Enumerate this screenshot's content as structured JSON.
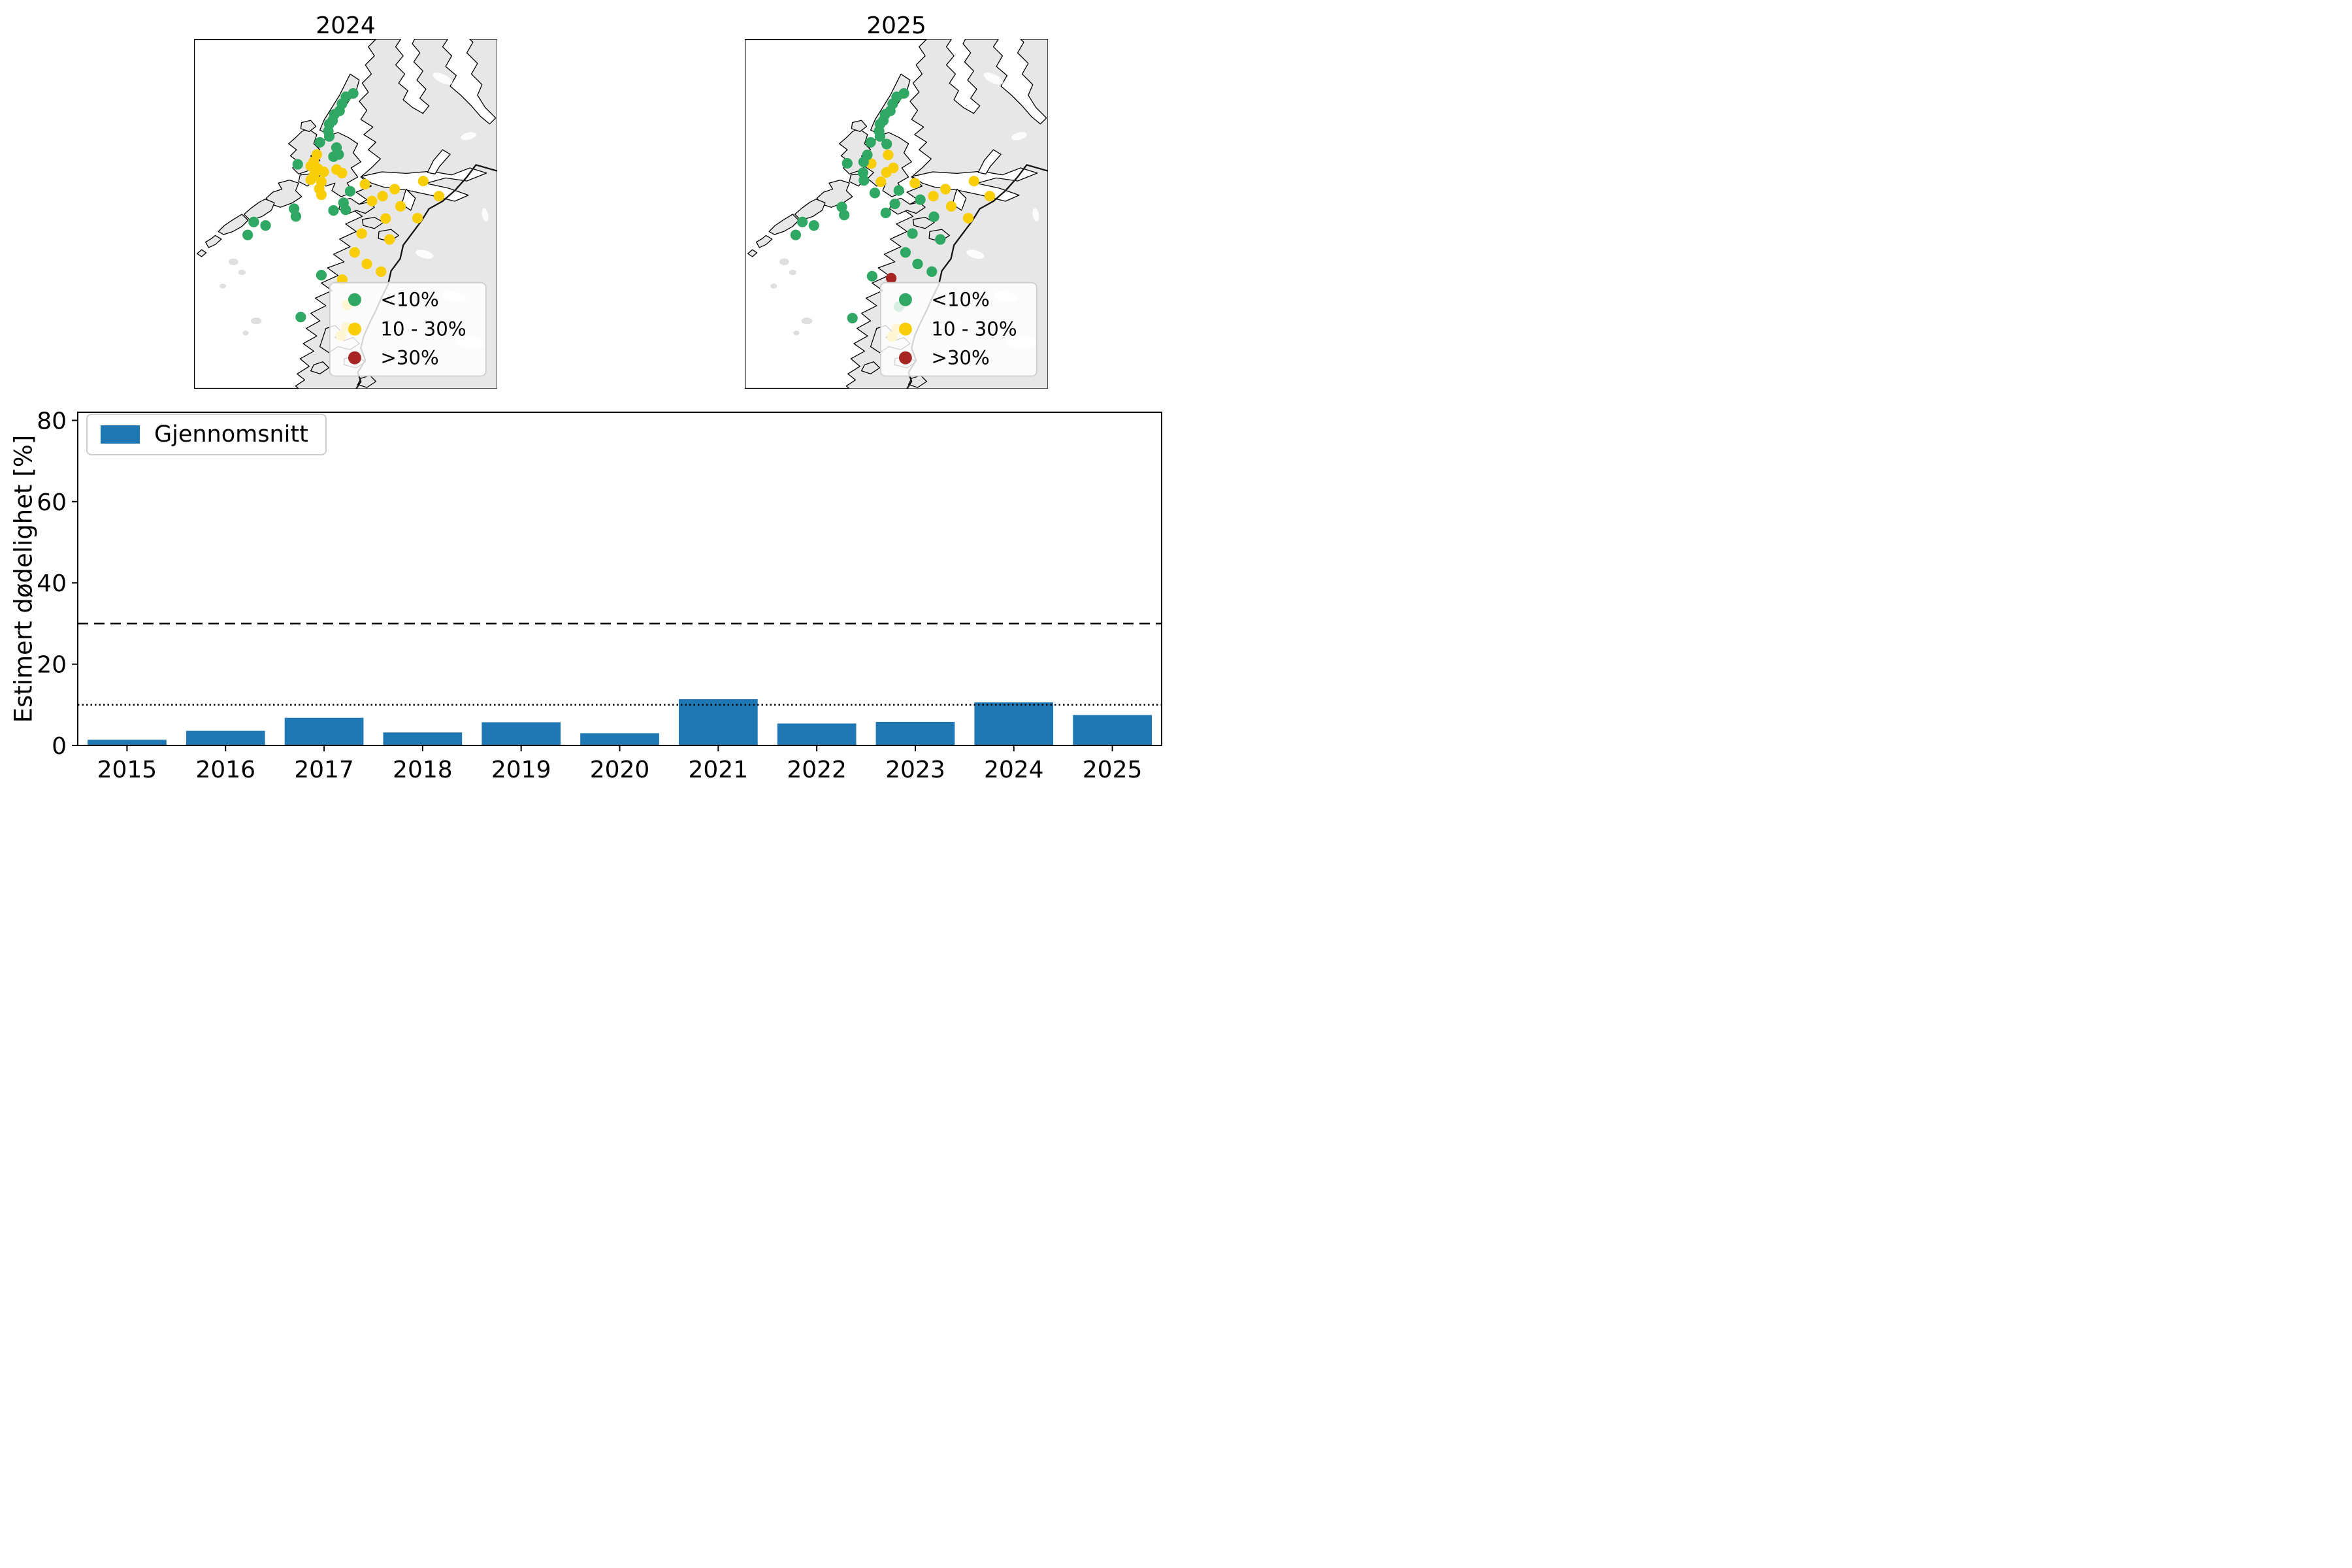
{
  "maps": {
    "colors": {
      "g": "#2FA863",
      "y": "#F8CE08",
      "r": "#A62522"
    },
    "legend": [
      {
        "label": "<10%",
        "c": "g"
      },
      {
        "label": "10 - 30%",
        "c": "y"
      },
      {
        "label": ">30%",
        "c": "r"
      }
    ],
    "panels": [
      {
        "title": "2024",
        "points": [
          [
            52.5,
            15.5,
            "g"
          ],
          [
            50.1,
            16.5,
            "g"
          ],
          [
            48.8,
            18.5,
            "g"
          ],
          [
            48.0,
            20.5,
            "g"
          ],
          [
            46.3,
            21.5,
            "g"
          ],
          [
            45.7,
            23.3,
            "g"
          ],
          [
            44.6,
            24.3,
            "g"
          ],
          [
            44.3,
            26.3,
            "g"
          ],
          [
            44.6,
            27.8,
            "g"
          ],
          [
            41.5,
            29.5,
            "g"
          ],
          [
            47.0,
            31.0,
            "g"
          ],
          [
            47.7,
            33.0,
            "g"
          ],
          [
            46.0,
            33.6,
            "g"
          ],
          [
            34.2,
            35.8,
            "g"
          ],
          [
            40.5,
            33.0,
            "y"
          ],
          [
            39.5,
            35.0,
            "y"
          ],
          [
            38.5,
            36.3,
            "y"
          ],
          [
            40.8,
            37.0,
            "y"
          ],
          [
            42.8,
            38.0,
            "y"
          ],
          [
            39.5,
            39.0,
            "y"
          ],
          [
            38.5,
            40.2,
            "y"
          ],
          [
            42.0,
            40.8,
            "y"
          ],
          [
            41.3,
            42.8,
            "y"
          ],
          [
            42.0,
            44.5,
            "y"
          ],
          [
            47.0,
            37.3,
            "y"
          ],
          [
            48.8,
            38.3,
            "y"
          ],
          [
            51.5,
            43.5,
            "g"
          ],
          [
            49.3,
            46.8,
            "g"
          ],
          [
            50.0,
            48.8,
            "g"
          ],
          [
            46.0,
            49.0,
            "g"
          ],
          [
            33.0,
            48.5,
            "g"
          ],
          [
            33.6,
            50.7,
            "g"
          ],
          [
            19.7,
            52.3,
            "g"
          ],
          [
            23.6,
            53.3,
            "g"
          ],
          [
            17.7,
            56.0,
            "g"
          ],
          [
            56.4,
            41.5,
            "y"
          ],
          [
            62.2,
            44.9,
            "y"
          ],
          [
            58.7,
            46.3,
            "y"
          ],
          [
            66.2,
            42.9,
            "y"
          ],
          [
            68.1,
            47.8,
            "y"
          ],
          [
            63.2,
            51.3,
            "y"
          ],
          [
            73.7,
            51.2,
            "y"
          ],
          [
            75.6,
            40.6,
            "y"
          ],
          [
            80.8,
            44.9,
            "y"
          ],
          [
            55.3,
            55.6,
            "y"
          ],
          [
            64.5,
            57.3,
            "y"
          ],
          [
            53.0,
            61.0,
            "y"
          ],
          [
            57.0,
            64.3,
            "y"
          ],
          [
            61.7,
            66.5,
            "y"
          ],
          [
            48.9,
            68.8,
            "y"
          ],
          [
            42.0,
            67.5,
            "g"
          ],
          [
            35.2,
            79.5,
            "g"
          ],
          [
            50.5,
            76.0,
            "y"
          ],
          [
            50.2,
            82.5,
            "y"
          ],
          [
            48.5,
            84.8,
            "y"
          ]
        ]
      },
      {
        "title": "2025",
        "points": [
          [
            52.5,
            15.5,
            "g"
          ],
          [
            50.1,
            16.5,
            "g"
          ],
          [
            48.8,
            18.5,
            "g"
          ],
          [
            48.0,
            20.5,
            "g"
          ],
          [
            46.3,
            21.5,
            "g"
          ],
          [
            45.7,
            23.3,
            "g"
          ],
          [
            44.6,
            24.3,
            "g"
          ],
          [
            44.3,
            26.3,
            "g"
          ],
          [
            44.6,
            27.8,
            "g"
          ],
          [
            41.5,
            29.5,
            "g"
          ],
          [
            46.8,
            30.0,
            "g"
          ],
          [
            33.8,
            35.5,
            "g"
          ],
          [
            47.3,
            33.1,
            "y"
          ],
          [
            41.7,
            35.6,
            "y"
          ],
          [
            49.0,
            36.8,
            "y"
          ],
          [
            46.7,
            38.1,
            "y"
          ],
          [
            44.9,
            40.8,
            "y"
          ],
          [
            40.4,
            33.1,
            "g"
          ],
          [
            39.2,
            35.1,
            "g"
          ],
          [
            39.0,
            38.2,
            "g"
          ],
          [
            39.3,
            40.4,
            "g"
          ],
          [
            42.9,
            44.0,
            "g"
          ],
          [
            50.8,
            43.3,
            "g"
          ],
          [
            49.5,
            47.1,
            "g"
          ],
          [
            46.5,
            49.7,
            "g"
          ],
          [
            32.0,
            48.0,
            "g"
          ],
          [
            32.8,
            50.3,
            "g"
          ],
          [
            19.0,
            52.3,
            "g"
          ],
          [
            22.8,
            53.3,
            "g"
          ],
          [
            16.8,
            56.0,
            "g"
          ],
          [
            56.1,
            41.2,
            "y"
          ],
          [
            62.2,
            44.9,
            "y"
          ],
          [
            66.2,
            42.9,
            "y"
          ],
          [
            68.1,
            47.8,
            "y"
          ],
          [
            75.6,
            40.6,
            "y"
          ],
          [
            80.8,
            44.9,
            "y"
          ],
          [
            73.7,
            51.2,
            "y"
          ],
          [
            57.9,
            45.9,
            "g"
          ],
          [
            62.4,
            50.8,
            "g"
          ],
          [
            55.3,
            55.6,
            "g"
          ],
          [
            64.5,
            57.3,
            "g"
          ],
          [
            53.0,
            61.0,
            "g"
          ],
          [
            57.0,
            64.3,
            "g"
          ],
          [
            61.7,
            66.5,
            "g"
          ],
          [
            42.0,
            67.8,
            "g"
          ],
          [
            48.3,
            68.4,
            "r"
          ],
          [
            35.5,
            79.8,
            "g"
          ],
          [
            50.8,
            76.5,
            "g"
          ],
          [
            50.2,
            82.9,
            "y"
          ],
          [
            48.6,
            85.1,
            "y"
          ]
        ]
      }
    ]
  },
  "chart_data": {
    "type": "bar",
    "title": "",
    "categories": [
      "2015",
      "2016",
      "2017",
      "2018",
      "2019",
      "2020",
      "2021",
      "2022",
      "2023",
      "2024",
      "2025"
    ],
    "values": [
      1.4,
      3.6,
      6.8,
      3.2,
      5.7,
      3.0,
      11.4,
      5.4,
      5.8,
      10.6,
      7.5
    ],
    "series_name": "Gjennomsnitt",
    "xlabel": "",
    "ylabel": "Estimert dødelighet [%]",
    "yticks": [
      0,
      20,
      40,
      60,
      80
    ],
    "ylim": [
      0,
      82
    ],
    "bar_color": "#1F77B4",
    "grid": false,
    "legend_position": "upper-left",
    "reference_lines": [
      {
        "value": 30,
        "style": "dashed"
      },
      {
        "value": 10,
        "style": "dotted"
      }
    ]
  }
}
